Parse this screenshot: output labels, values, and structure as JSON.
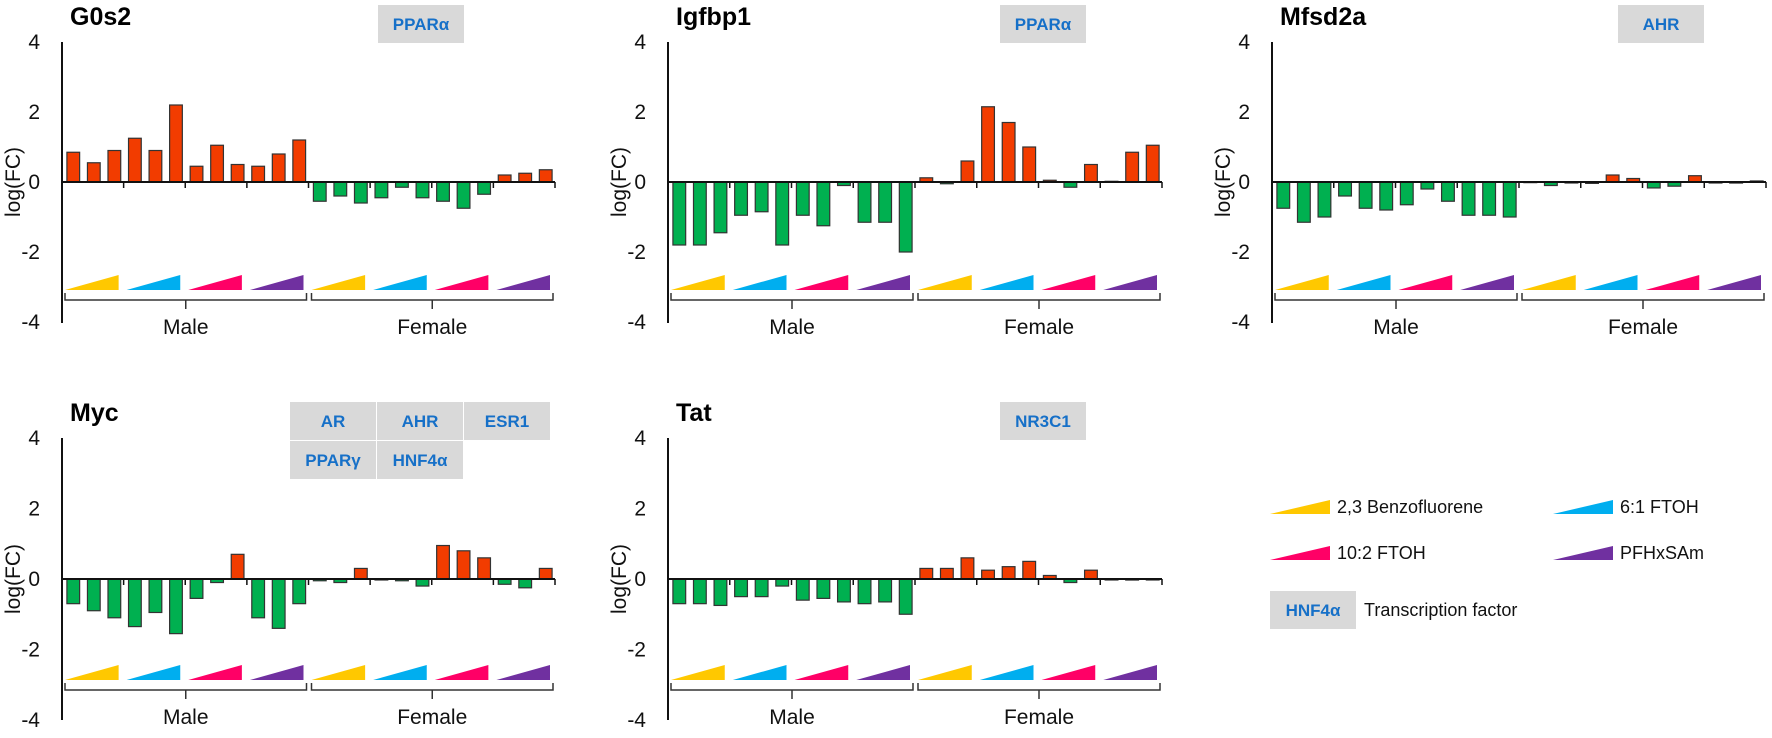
{
  "chart_data": [
    {
      "type": "bar",
      "title": "G0s2",
      "ylabel": "log(FC)",
      "ylim": [
        -4,
        4
      ],
      "yticks": [
        4,
        2,
        0,
        -2,
        -4
      ],
      "groups": [
        "Male",
        "Female"
      ],
      "transcription_factors": [
        "PPARα"
      ],
      "male": [
        0.85,
        0.55,
        0.9,
        1.25,
        0.9,
        2.2,
        0.45,
        1.05,
        0.5,
        0.45,
        0.8,
        1.2
      ],
      "female": [
        -0.55,
        -0.4,
        -0.6,
        -0.45,
        -0.15,
        -0.45,
        -0.55,
        -0.75,
        -0.35,
        0.2,
        0.25,
        0.35
      ]
    },
    {
      "type": "bar",
      "title": "Igfbp1",
      "ylabel": "log(FC)",
      "ylim": [
        -4,
        4
      ],
      "yticks": [
        4,
        2,
        0,
        -2,
        -4
      ],
      "groups": [
        "Male",
        "Female"
      ],
      "transcription_factors": [
        "PPARα"
      ],
      "male": [
        -1.8,
        -1.8,
        -1.45,
        -0.95,
        -0.85,
        -1.8,
        -0.95,
        -1.25,
        -0.1,
        -1.15,
        -1.15,
        -2.0
      ],
      "female": [
        0.12,
        -0.05,
        0.6,
        2.15,
        1.7,
        1.0,
        0.05,
        -0.15,
        0.5,
        0.02,
        0.85,
        1.05
      ]
    },
    {
      "type": "bar",
      "title": "Mfsd2a",
      "ylabel": "log(FC)",
      "ylim": [
        -4,
        4
      ],
      "yticks": [
        4,
        2,
        0,
        -2,
        -4
      ],
      "groups": [
        "Male",
        "Female"
      ],
      "transcription_factors": [
        "AHR"
      ],
      "male": [
        -0.75,
        -1.15,
        -1.0,
        -0.4,
        -0.75,
        -0.8,
        -0.65,
        -0.2,
        -0.55,
        -0.95,
        -0.95,
        -1.0
      ],
      "female": [
        0.01,
        -0.1,
        0.0,
        -0.04,
        0.2,
        0.1,
        -0.17,
        -0.12,
        0.18,
        0.0,
        -0.03,
        0.03
      ]
    },
    {
      "type": "bar",
      "title": "Myc",
      "ylabel": "log(FC)",
      "ylim": [
        -4,
        4
      ],
      "yticks": [
        4,
        2,
        0,
        -2,
        -4
      ],
      "groups": [
        "Male",
        "Female"
      ],
      "transcription_factors": [
        "AR",
        "AHR",
        "ESR1",
        "PPARγ",
        "HNF4α"
      ],
      "male": [
        -0.7,
        -0.9,
        -1.1,
        -1.35,
        -0.95,
        -1.55,
        -0.55,
        -0.1,
        0.7,
        -1.1,
        -1.4,
        -0.7
      ],
      "female": [
        -0.05,
        -0.1,
        0.3,
        0.0,
        -0.05,
        -0.2,
        0.95,
        0.8,
        0.6,
        -0.15,
        -0.25,
        0.3
      ]
    },
    {
      "type": "bar",
      "title": "Tat",
      "ylabel": "log(FC)",
      "ylim": [
        -4,
        4
      ],
      "yticks": [
        4,
        2,
        0,
        -2,
        -4
      ],
      "groups": [
        "Male",
        "Female"
      ],
      "transcription_factors": [
        "NR3C1"
      ],
      "male": [
        -0.7,
        -0.7,
        -0.75,
        -0.5,
        -0.5,
        -0.2,
        -0.6,
        -0.55,
        -0.65,
        -0.7,
        -0.65,
        -1.0
      ],
      "female": [
        0.3,
        0.3,
        0.6,
        0.25,
        0.35,
        0.5,
        0.1,
        -0.1,
        0.25,
        0.0,
        -0.03,
        0.0
      ]
    }
  ],
  "colors": {
    "positive": "#f23c00",
    "negative": "#00b050",
    "tf_box": "#d9d9d9",
    "tf_text": "#1670c8"
  },
  "legend": {
    "compounds": [
      {
        "label": "2,3 Benzofluorene",
        "color": "#ffc800"
      },
      {
        "label": "6:1 FTOH",
        "color": "#00aeef"
      },
      {
        "label": "10:2 FTOH",
        "color": "#ff0066"
      },
      {
        "label": "PFHxSAm",
        "color": "#7030a0"
      }
    ],
    "tf_example": "HNF4α",
    "tf_label": "Transcription factor"
  }
}
